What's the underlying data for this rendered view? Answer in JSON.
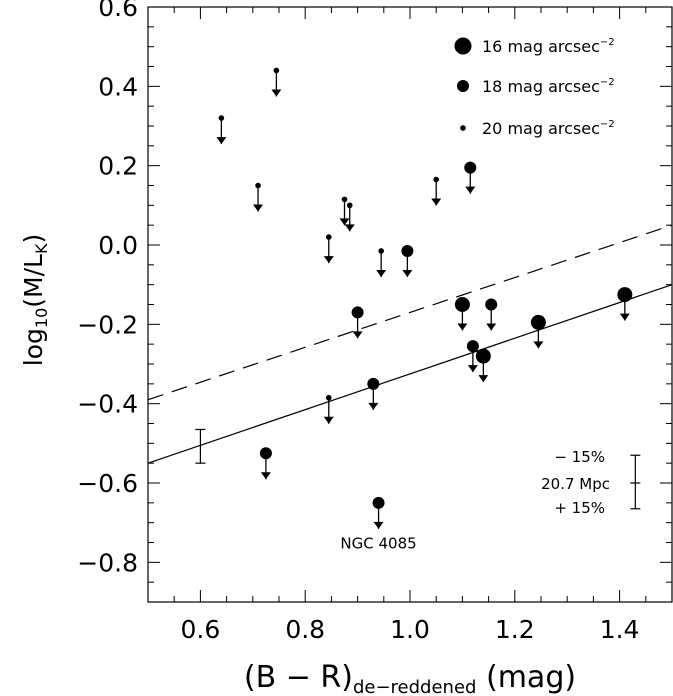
{
  "chart_data": {
    "type": "scatter",
    "xlabel_main": "(B − R)",
    "xlabel_sub": "de−reddened",
    "xlabel_unit": " (mag)",
    "ylabel_main": "log",
    "ylabel_sub1": "10",
    "ylabel_mid": "(M/L",
    "ylabel_sub2": "K",
    "ylabel_end": ")",
    "xlim": [
      0.5,
      1.5
    ],
    "ylim": [
      -0.9,
      0.6
    ],
    "x_ticks": [
      "0.6",
      "0.8",
      "1.0",
      "1.2",
      "1.4"
    ],
    "x_tick_values": [
      0.6,
      0.8,
      1.0,
      1.2,
      1.4
    ],
    "y_ticks": [
      "0.6",
      "0.4",
      "0.2",
      "0.0",
      "−0.2",
      "−0.4",
      "−0.6",
      "−0.8"
    ],
    "y_tick_values": [
      0.6,
      0.4,
      0.2,
      0.0,
      -0.2,
      -0.4,
      -0.6,
      -0.8
    ],
    "grid": false,
    "legend_position": "top-right",
    "legend": [
      {
        "label": "16 mag arcsec",
        "sup": "−2",
        "size": "large"
      },
      {
        "label": "18 mag arcsec",
        "sup": "−2",
        "size": "medium"
      },
      {
        "label": "20 mag arcsec",
        "sup": "−2",
        "size": "small"
      }
    ],
    "points": [
      {
        "x": 0.64,
        "y": 0.32,
        "size": "small"
      },
      {
        "x": 0.71,
        "y": 0.15,
        "size": "small"
      },
      {
        "x": 0.745,
        "y": 0.44,
        "size": "small"
      },
      {
        "x": 0.725,
        "y": -0.525,
        "size": "medium"
      },
      {
        "x": 0.845,
        "y": 0.02,
        "size": "small"
      },
      {
        "x": 0.845,
        "y": -0.385,
        "size": "small"
      },
      {
        "x": 0.875,
        "y": 0.115,
        "size": "small"
      },
      {
        "x": 0.885,
        "y": 0.1,
        "size": "small"
      },
      {
        "x": 0.9,
        "y": -0.17,
        "size": "medium"
      },
      {
        "x": 0.93,
        "y": -0.35,
        "size": "medium"
      },
      {
        "x": 0.94,
        "y": -0.65,
        "size": "medium"
      },
      {
        "x": 0.945,
        "y": -0.015,
        "size": "small"
      },
      {
        "x": 0.995,
        "y": -0.015,
        "size": "medium"
      },
      {
        "x": 1.05,
        "y": 0.165,
        "size": "small"
      },
      {
        "x": 1.1,
        "y": -0.15,
        "size": "large"
      },
      {
        "x": 1.115,
        "y": 0.195,
        "size": "medium"
      },
      {
        "x": 1.12,
        "y": -0.255,
        "size": "medium"
      },
      {
        "x": 1.14,
        "y": -0.28,
        "size": "large"
      },
      {
        "x": 1.155,
        "y": -0.15,
        "size": "medium"
      },
      {
        "x": 1.245,
        "y": -0.195,
        "size": "large"
      },
      {
        "x": 1.41,
        "y": -0.125,
        "size": "large"
      }
    ],
    "upper_limit_arrows": true,
    "solid_line": {
      "x": [
        0.5,
        1.5
      ],
      "y": [
        -0.55,
        -0.1
      ]
    },
    "dashed_line": {
      "x": [
        0.5,
        1.5
      ],
      "y": [
        -0.39,
        0.05
      ]
    },
    "error_bar": {
      "x": 0.6,
      "y_low": -0.55,
      "y_high": -0.465
    },
    "distance_bar": {
      "x": 1.43,
      "y_center": -0.6,
      "y_low": -0.665,
      "y_high": -0.53
    },
    "annotations": {
      "minus": "− 15%",
      "distance": "20.7 Mpc",
      "plus": "+ 15%",
      "galaxy": "NGC 4085"
    }
  }
}
